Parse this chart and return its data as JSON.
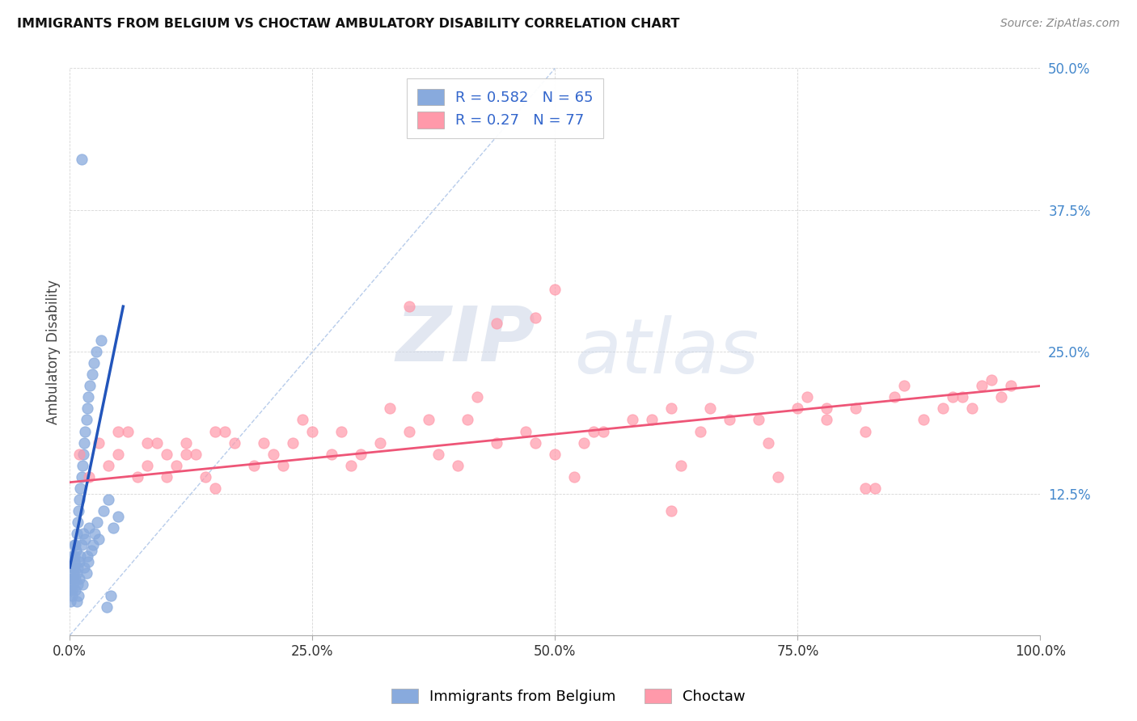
{
  "title": "IMMIGRANTS FROM BELGIUM VS CHOCTAW AMBULATORY DISABILITY CORRELATION CHART",
  "source": "Source: ZipAtlas.com",
  "xlabel": "",
  "ylabel": "Ambulatory Disability",
  "legend_label1": "Immigrants from Belgium",
  "legend_label2": "Choctaw",
  "r1": 0.582,
  "n1": 65,
  "r2": 0.27,
  "n2": 77,
  "color1": "#88AADD",
  "color2": "#FF99AA",
  "trendline1_color": "#2255BB",
  "trendline2_color": "#EE5577",
  "diag_color": "#88AADD",
  "watermark_zip": "ZIP",
  "watermark_atlas": "atlas",
  "xlim": [
    0,
    100
  ],
  "ylim": [
    0,
    50
  ],
  "xticks": [
    0,
    25,
    50,
    75,
    100
  ],
  "yticks": [
    12.5,
    25.0,
    37.5,
    50.0
  ],
  "xtick_labels": [
    "0.0%",
    "25.0%",
    "50.0%",
    "75.0%",
    "100.0%"
  ],
  "ytick_labels": [
    "12.5%",
    "25.0%",
    "37.5%",
    "50.0%"
  ],
  "background_color": "#ffffff",
  "scatter1_x": [
    0.1,
    0.15,
    0.2,
    0.25,
    0.3,
    0.35,
    0.4,
    0.45,
    0.5,
    0.55,
    0.6,
    0.65,
    0.7,
    0.75,
    0.8,
    0.85,
    0.9,
    0.95,
    1.0,
    1.1,
    1.2,
    1.3,
    1.4,
    1.5,
    1.6,
    1.7,
    1.8,
    1.9,
    2.0,
    2.2,
    2.4,
    2.6,
    2.8,
    3.0,
    3.5,
    4.0,
    4.5,
    5.0,
    0.1,
    0.2,
    0.3,
    0.4,
    0.5,
    0.6,
    0.7,
    0.8,
    0.9,
    1.0,
    1.1,
    1.2,
    1.3,
    1.4,
    1.5,
    1.6,
    1.7,
    1.8,
    1.9,
    2.1,
    2.3,
    2.5,
    2.7,
    3.2,
    3.8,
    4.2,
    1.2
  ],
  "scatter1_y": [
    4.0,
    5.0,
    3.5,
    6.0,
    4.5,
    7.0,
    5.5,
    8.0,
    6.5,
    4.0,
    5.0,
    7.5,
    3.0,
    5.5,
    4.5,
    6.0,
    3.5,
    5.0,
    6.5,
    7.0,
    8.0,
    4.5,
    9.0,
    6.0,
    8.5,
    5.5,
    7.0,
    6.5,
    9.5,
    7.5,
    8.0,
    9.0,
    10.0,
    8.5,
    11.0,
    12.0,
    9.5,
    10.5,
    3.0,
    4.0,
    5.0,
    6.0,
    7.0,
    8.0,
    9.0,
    10.0,
    11.0,
    12.0,
    13.0,
    14.0,
    15.0,
    16.0,
    17.0,
    18.0,
    19.0,
    20.0,
    21.0,
    22.0,
    23.0,
    24.0,
    25.0,
    26.0,
    2.5,
    3.5,
    42.0
  ],
  "scatter2_x": [
    1.0,
    2.0,
    3.0,
    4.0,
    5.0,
    6.0,
    7.0,
    8.0,
    9.0,
    10.0,
    11.0,
    12.0,
    13.0,
    14.0,
    15.0,
    17.0,
    19.0,
    21.0,
    23.0,
    25.0,
    27.0,
    29.0,
    32.0,
    35.0,
    38.0,
    41.0,
    44.0,
    47.0,
    50.0,
    53.0,
    55.0,
    58.0,
    62.0,
    65.0,
    68.0,
    72.0,
    75.0,
    78.0,
    82.0,
    85.0,
    88.0,
    90.0,
    92.0,
    94.0,
    95.0,
    96.0,
    97.0,
    5.0,
    8.0,
    12.0,
    16.0,
    20.0,
    24.0,
    28.0,
    33.0,
    37.0,
    42.0,
    48.0,
    54.0,
    60.0,
    66.0,
    71.0,
    76.0,
    81.0,
    86.0,
    91.0,
    93.0,
    10.0,
    15.0,
    22.0,
    30.0,
    40.0,
    52.0,
    63.0,
    73.0,
    83.0
  ],
  "scatter2_y": [
    16.0,
    14.0,
    17.0,
    15.0,
    16.0,
    18.0,
    14.0,
    15.0,
    17.0,
    16.0,
    15.0,
    17.0,
    16.0,
    14.0,
    18.0,
    17.0,
    15.0,
    16.0,
    17.0,
    18.0,
    16.0,
    15.0,
    17.0,
    18.0,
    16.0,
    19.0,
    17.0,
    18.0,
    16.0,
    17.0,
    18.0,
    19.0,
    20.0,
    18.0,
    19.0,
    17.0,
    20.0,
    19.0,
    18.0,
    21.0,
    19.0,
    20.0,
    21.0,
    22.0,
    22.5,
    21.0,
    22.0,
    18.0,
    17.0,
    16.0,
    18.0,
    17.0,
    19.0,
    18.0,
    20.0,
    19.0,
    21.0,
    17.0,
    18.0,
    19.0,
    20.0,
    19.0,
    21.0,
    20.0,
    22.0,
    21.0,
    20.0,
    14.0,
    13.0,
    15.0,
    16.0,
    15.0,
    14.0,
    15.0,
    14.0,
    13.0
  ],
  "scatter2_outliers_x": [
    35.0,
    50.0,
    48.0,
    44.0,
    78.0,
    82.0,
    62.0
  ],
  "scatter2_outliers_y": [
    29.0,
    30.5,
    28.0,
    27.5,
    20.0,
    13.0,
    11.0
  ],
  "trendline1_x0": 0.0,
  "trendline1_y0": 6.0,
  "trendline1_x1": 5.5,
  "trendline1_y1": 29.0,
  "trendline2_x0": 0.0,
  "trendline2_y0": 13.5,
  "trendline2_x1": 100.0,
  "trendline2_y1": 22.0,
  "diag_x0": 0.0,
  "diag_y0": 0.0,
  "diag_x1": 50.0,
  "diag_y1": 50.0
}
